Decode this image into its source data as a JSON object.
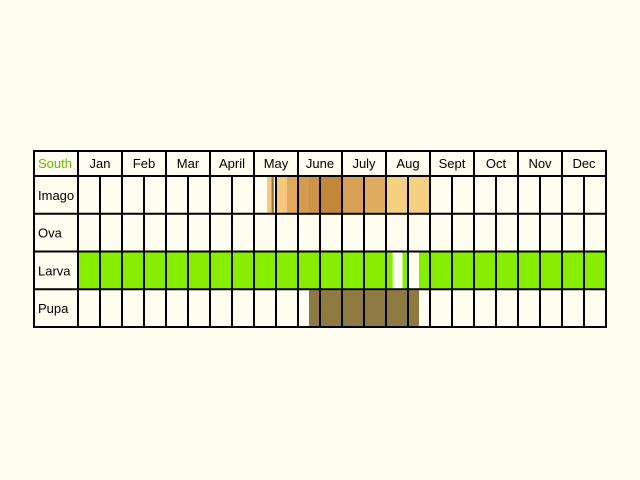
{
  "chart_data": {
    "type": "table",
    "region_label": "South",
    "months": [
      "Jan",
      "Feb",
      "Mar",
      "April",
      "May",
      "June",
      "July",
      "Aug",
      "Sept",
      "Oct",
      "Nov",
      "Dec"
    ],
    "stages": [
      "Imago",
      "Ova",
      "Larva",
      "Pupa"
    ],
    "half_months_per_month": 2,
    "occurrence": {
      "Imago": [
        {
          "start": 8.6,
          "end": 8.8,
          "color": "#f4c880"
        },
        {
          "start": 8.8,
          "end": 8.9,
          "color": "#a0702c"
        },
        {
          "start": 9.0,
          "end": 9.5,
          "color": "#f4c880"
        },
        {
          "start": 9.5,
          "end": 10.0,
          "color": "#e0a85a"
        },
        {
          "start": 10.0,
          "end": 10.5,
          "color": "#d49a4f"
        },
        {
          "start": 10.5,
          "end": 11.0,
          "color": "#cc9248"
        },
        {
          "start": 11.0,
          "end": 12.0,
          "color": "#c08838"
        },
        {
          "start": 12.0,
          "end": 13.0,
          "color": "#d8a055"
        },
        {
          "start": 13.0,
          "end": 14.0,
          "color": "#e0ac60"
        },
        {
          "start": 14.0,
          "end": 14.7,
          "color": "#f4d080"
        },
        {
          "start": 14.7,
          "end": 15.0,
          "color": "#f4d080"
        },
        {
          "start": 15.0,
          "end": 15.3,
          "color": "#f4d080"
        },
        {
          "start": 15.3,
          "end": 16.0,
          "color": "#f4d080"
        }
      ],
      "Ova": [],
      "Larva": [
        {
          "start": 0,
          "end": 14.3,
          "color": "#88ee00"
        },
        {
          "start": 14.75,
          "end": 15.0,
          "color": "#88ee00"
        },
        {
          "start": 15.5,
          "end": 24,
          "color": "#88ee00"
        }
      ],
      "Pupa": [
        {
          "start": 10.5,
          "end": 15.5,
          "color": "#8e7a40"
        }
      ]
    }
  },
  "colors": {
    "background": "#fffdf0",
    "grid": "#000000",
    "region_label": "#66bb00"
  }
}
